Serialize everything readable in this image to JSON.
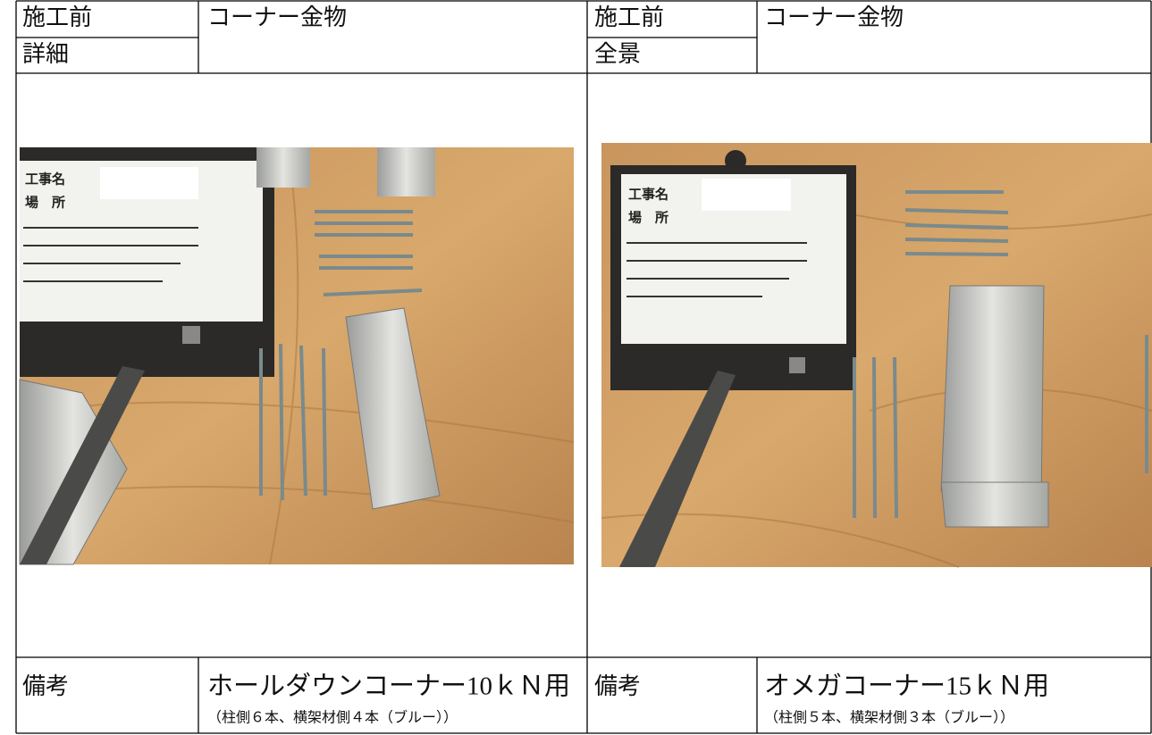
{
  "sections": [
    {
      "label": "施工前",
      "sublabel": "詳細",
      "title": "コーナー金物",
      "photo_labels": [
        "工事名",
        "場　所"
      ],
      "remarks_label": "備考",
      "remarks": "ホールダウンコーナー10ｋＮ用",
      "remarks_note": "（柱側６本、横架材側４本（ブルー））"
    },
    {
      "label": "施工前",
      "sublabel": "全景",
      "title": "コーナー金物",
      "photo_labels": [
        "工事名",
        "場　所"
      ],
      "remarks_label": "備考",
      "remarks": "オメガコーナー15ｋＮ用",
      "remarks_note": "（柱側５本、横架材側３本（ブルー））"
    }
  ]
}
